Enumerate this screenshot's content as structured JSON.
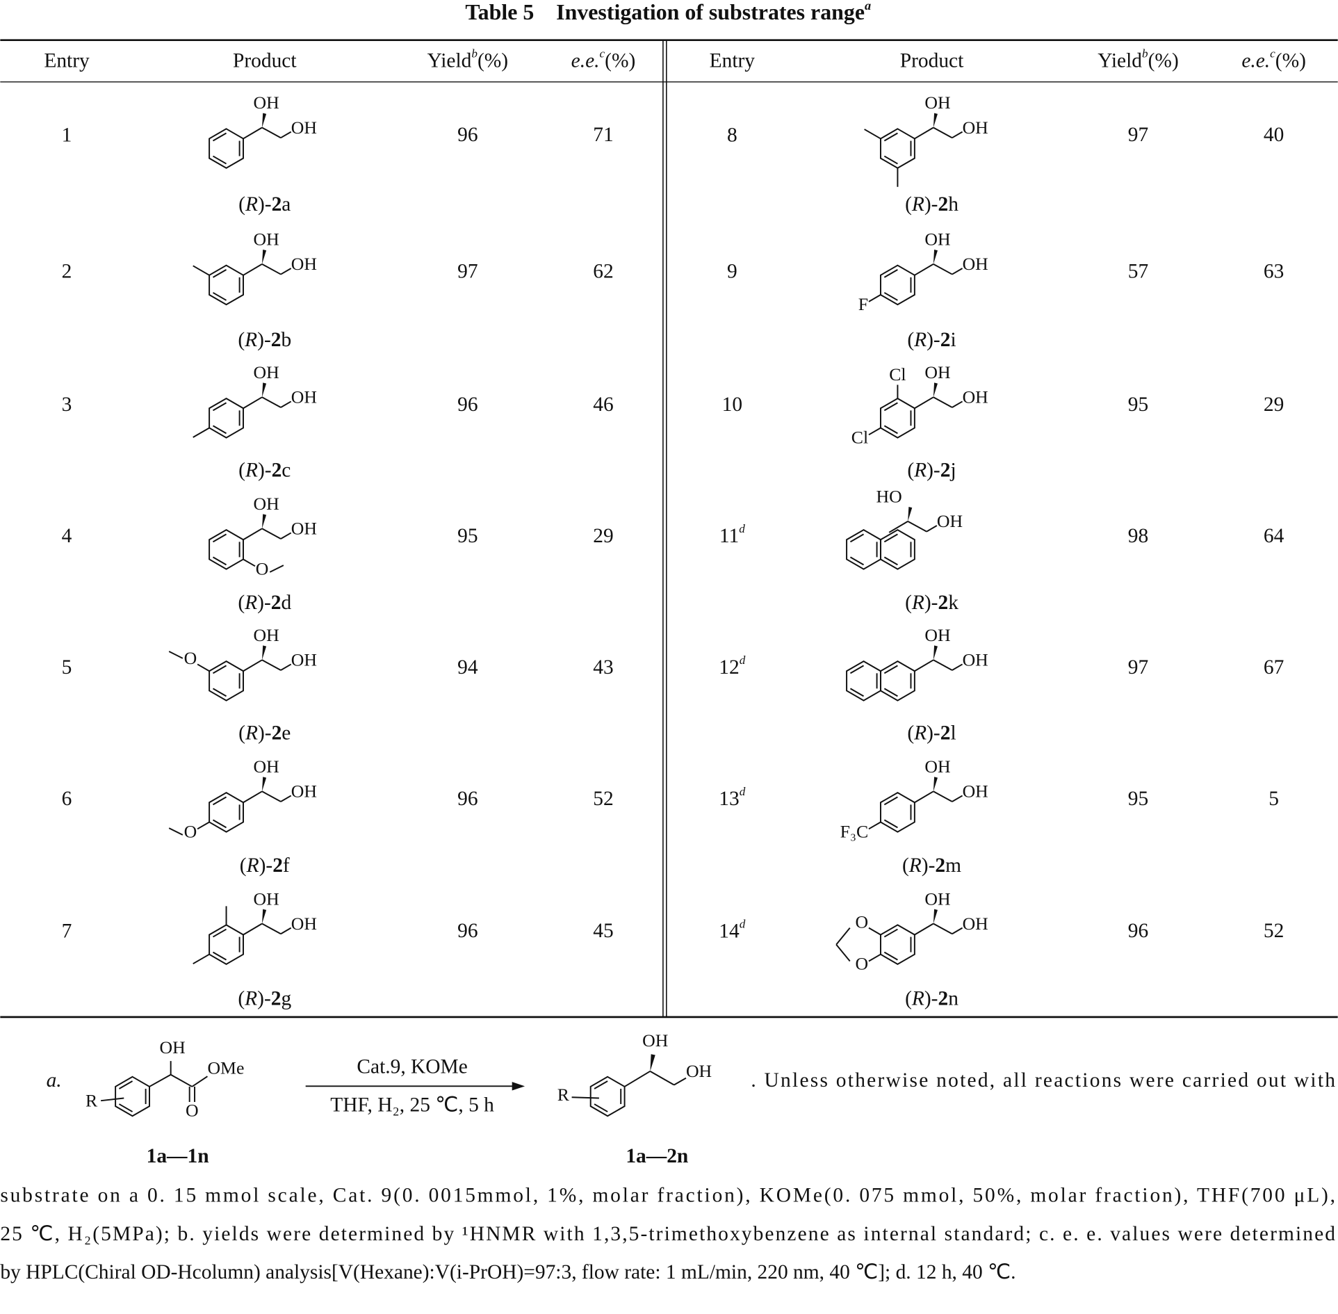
{
  "title": "Table 5 Investigation of substrates range",
  "title_note": "a",
  "header": [
    {
      "text": "Entry"
    },
    {
      "text": "Product"
    },
    {
      "text": "Yield",
      "sup": "b",
      "unit": "(%)"
    },
    {
      "text": "e.e.",
      "sup": "c",
      "unit": "(%)"
    }
  ],
  "rows": [
    {
      "entry": "1",
      "product": "(R)-2a",
      "atoms": [
        "OH",
        "OH"
      ],
      "yield": 96,
      "ee": 71
    },
    {
      "entry": "2",
      "product": "(R)-2b",
      "atoms": [
        "OH",
        "OH"
      ],
      "yield": 97,
      "ee": 62
    },
    {
      "entry": "3",
      "product": "(R)-2c",
      "atoms": [
        "OH",
        "OH"
      ],
      "yield": 96,
      "ee": 46
    },
    {
      "entry": "4",
      "product": "(R)-2d",
      "atoms": [
        "OH",
        "OH",
        "O"
      ],
      "yield": 95,
      "ee": 29
    },
    {
      "entry": "5",
      "product": "(R)-2e",
      "atoms": [
        "OH",
        "OH",
        "O"
      ],
      "yield": 94,
      "ee": 43
    },
    {
      "entry": "6",
      "product": "(R)-2f",
      "atoms": [
        "OH",
        "OH",
        "O"
      ],
      "yield": 96,
      "ee": 52
    },
    {
      "entry": "7",
      "product": "(R)-2g",
      "atoms": [
        "OH",
        "OH"
      ],
      "yield": 96,
      "ee": 45
    },
    {
      "entry": "8",
      "product": "(R)-2h",
      "atoms": [
        "OH",
        "OH"
      ],
      "yield": 97,
      "ee": 40
    },
    {
      "entry": "9",
      "product": "(R)-2i",
      "atoms": [
        "OH",
        "OH",
        "F"
      ],
      "yield": 57,
      "ee": 63
    },
    {
      "entry": "10",
      "product": "(R)-2j",
      "atoms": [
        "OH",
        "OH",
        "Cl",
        "Cl"
      ],
      "yield": 95,
      "ee": 29
    },
    {
      "entry": "11",
      "note": "d",
      "product": "(R)-2k",
      "atoms": [
        "HO",
        "OH"
      ],
      "yield": 98,
      "ee": 64
    },
    {
      "entry": "12",
      "note": "d",
      "product": "(R)-2l",
      "atoms": [
        "OH",
        "OH"
      ],
      "yield": 97,
      "ee": 67
    },
    {
      "entry": "13",
      "note": "d",
      "product": "(R)-2m",
      "atoms": [
        "OH",
        "OH",
        "F₃C"
      ],
      "yield": 95,
      "ee": 5
    },
    {
      "entry": "14",
      "note": "d",
      "product": "(R)-2n",
      "atoms": [
        "OH",
        "OH",
        "O",
        "O"
      ],
      "yield": 96,
      "ee": 52
    }
  ],
  "scheme": {
    "note_label": "a.",
    "reactant": {
      "atoms": [
        "OH",
        "OMe",
        "O",
        "R"
      ],
      "label": "1a—1n"
    },
    "conditions": [
      "Cat.9, KOMe",
      "THF, H₂, 25 ℃, 5 h"
    ],
    "product": {
      "atoms": [
        "OH",
        "OH",
        "R"
      ],
      "label": "1a—2n"
    }
  },
  "footnote": [
    ". Unless otherwise noted, all reactions were carried out with",
    "substrate on a 0. 15 mmol scale, Cat. 9(0. 0015mmol, 1%, molar fraction), KOMe(0. 075 mmol, 50%, molar fraction), THF(700 μL),",
    "25 ℃, H₂(5MPa); b. yields were determined by ¹HNMR with 1,3,5-trimethoxybenzene as internal standard; c. e. e. values were determined",
    "by HPLC(Chiral OD-Hcolumn) analysis[V(Hexane):V(i-PrOH)=97:3, flow rate: 1 mL/min, 220 nm, 40 ℃]; d. 12 h, 40 ℃."
  ]
}
